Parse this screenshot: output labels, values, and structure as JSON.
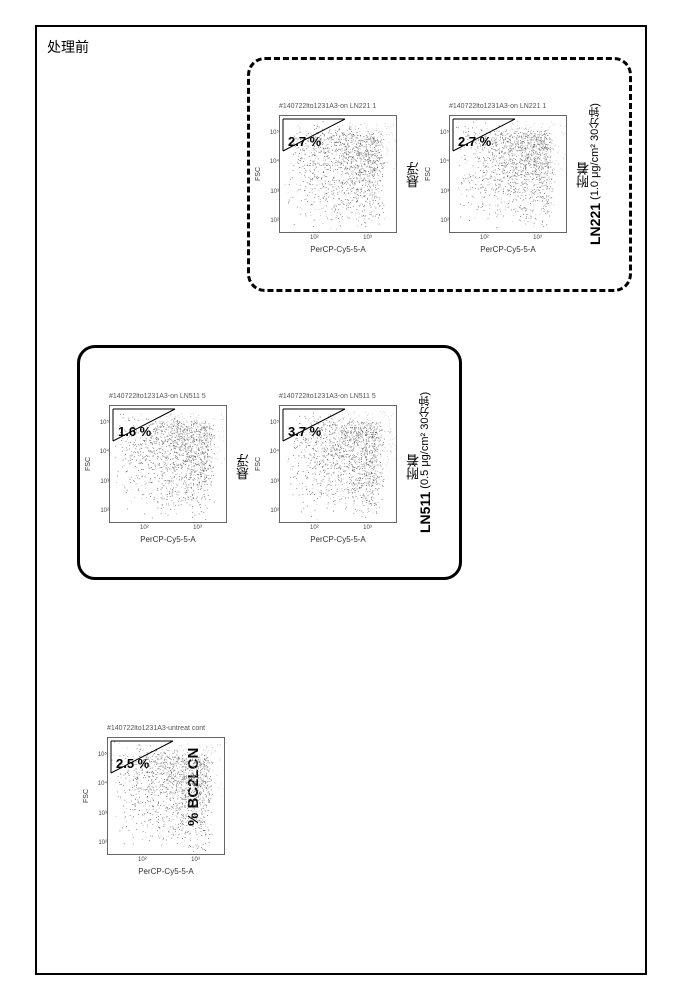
{
  "frame": {
    "title": "处理前"
  },
  "bc2lcn_label": "% BC2LCN",
  "plots": {
    "untreated": {
      "title": "#140722lto1231A3-untreat cont",
      "percent": "2.5 %",
      "xlabel": "PerCP-Cy5-5-A",
      "x_ticks": [
        "10²",
        "10³"
      ],
      "y_ticks": [
        "10²",
        "10³",
        "10⁴",
        "10⁵"
      ]
    },
    "ln511_susp": {
      "title": "#140722lto1231A3-on LN511 5",
      "percent": "1.6 %",
      "xlabel": "PerCP-Cy5-5-A",
      "x_ticks": [
        "10²",
        "10³"
      ],
      "y_ticks": [
        "10²",
        "10³",
        "10⁴",
        "10⁵"
      ]
    },
    "ln511_att": {
      "title": "#140722lto1231A3-on LN511 5",
      "percent": "3.7 %",
      "xlabel": "PerCP-Cy5-5-A",
      "x_ticks": [
        "10²",
        "10³"
      ],
      "y_ticks": [
        "10²",
        "10³",
        "10⁴",
        "10⁵"
      ]
    },
    "ln221_susp": {
      "title": "#140722lto1231A3-on LN221 1",
      "percent": "2.7 %",
      "xlabel": "PerCP-Cy5-5-A",
      "x_ticks": [
        "10²",
        "10³"
      ],
      "y_ticks": [
        "10²",
        "10³",
        "10⁴",
        "10⁵"
      ]
    },
    "ln221_att": {
      "title": "#140722lto1231A3-on LN221 1",
      "percent": "2.7 %",
      "xlabel": "PerCP-Cy5-5-A",
      "x_ticks": [
        "10²",
        "10³"
      ],
      "y_ticks": [
        "10²",
        "10³",
        "10⁴",
        "10⁵"
      ]
    }
  },
  "groups": {
    "ln511": {
      "title": "LN511",
      "subtitle": " (0.5 μg/cm² 30分钟)"
    },
    "ln221": {
      "title": "LN221",
      "subtitle": " (1.0 μg/cm² 30分钟)"
    }
  },
  "conditions": {
    "suspended": "悬浮",
    "attached": "附着"
  },
  "styling": {
    "outer_border_color": "#000000",
    "solid_border_width": 3,
    "dashed_border_width": 3,
    "scatter_color": "#999999",
    "dense_color": "#555555",
    "percent_fontsize": 13,
    "percent_weight": "bold"
  }
}
